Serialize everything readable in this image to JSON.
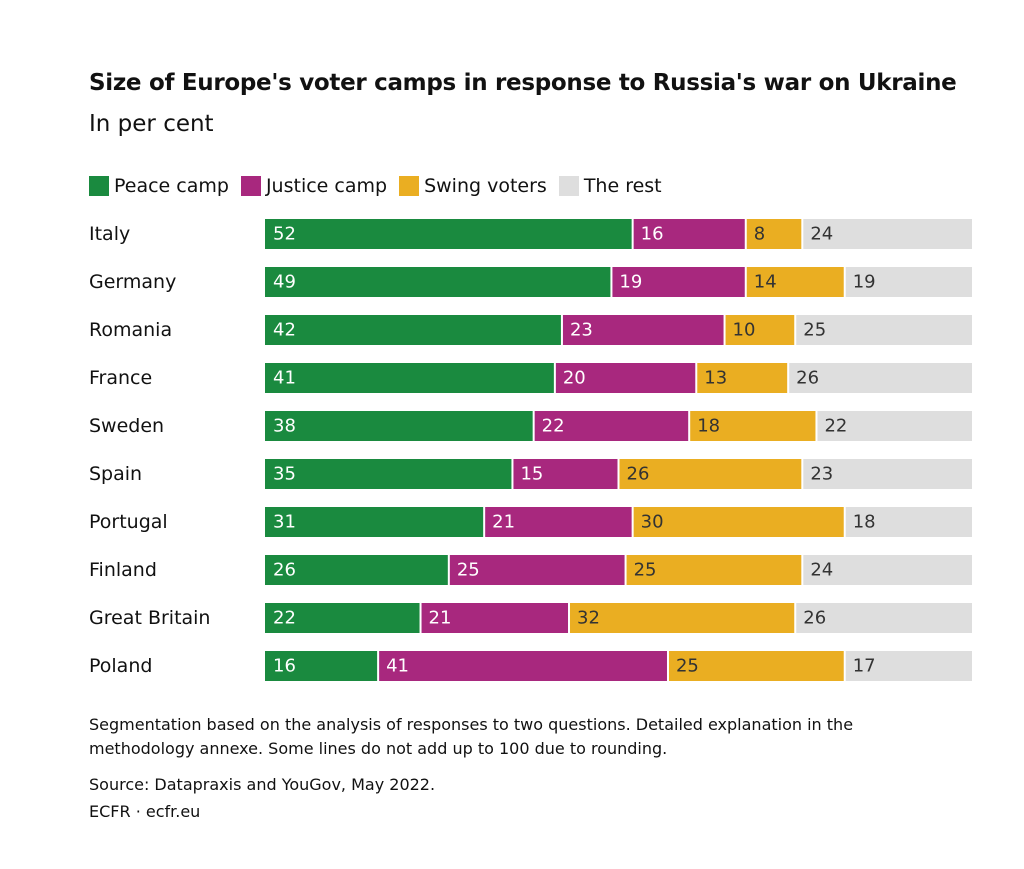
{
  "chart_data": {
    "type": "bar",
    "orientation": "horizontal",
    "stacked": true,
    "title": "Size of Europe's voter camps in response to Russia's war on Ukraine",
    "subtitle": "In per cent",
    "categories": [
      "Italy",
      "Germany",
      "Romania",
      "France",
      "Sweden",
      "Spain",
      "Portugal",
      "Finland",
      "Great Britain",
      "Poland"
    ],
    "series": [
      {
        "name": "Peace camp",
        "color": "#1a8a3f",
        "label_color": "#ffffff",
        "values": [
          52,
          49,
          42,
          41,
          38,
          35,
          31,
          26,
          22,
          16
        ]
      },
      {
        "name": "Justice camp",
        "color": "#a8287e",
        "label_color": "#ffffff",
        "values": [
          16,
          19,
          23,
          20,
          22,
          15,
          21,
          25,
          21,
          41
        ]
      },
      {
        "name": "Swing voters",
        "color": "#eaae22",
        "label_color": "#333333",
        "values": [
          8,
          14,
          10,
          13,
          18,
          26,
          30,
          25,
          32,
          25
        ]
      },
      {
        "name": "The rest",
        "color": "#dedede",
        "label_color": "#333333",
        "values": [
          24,
          19,
          25,
          26,
          22,
          23,
          18,
          24,
          26,
          17
        ]
      }
    ],
    "xlim": [
      0,
      100
    ],
    "legend_position": "top-left",
    "grid": false
  },
  "notes": "Segmentation based on the analysis of responses to two questions. Detailed explanation in the methodology annexe. Some lines do not add up to 100 due to rounding.",
  "source": "Source: Datapraxis and YouGov, May 2022.",
  "credit": "ECFR · ecfr.eu"
}
